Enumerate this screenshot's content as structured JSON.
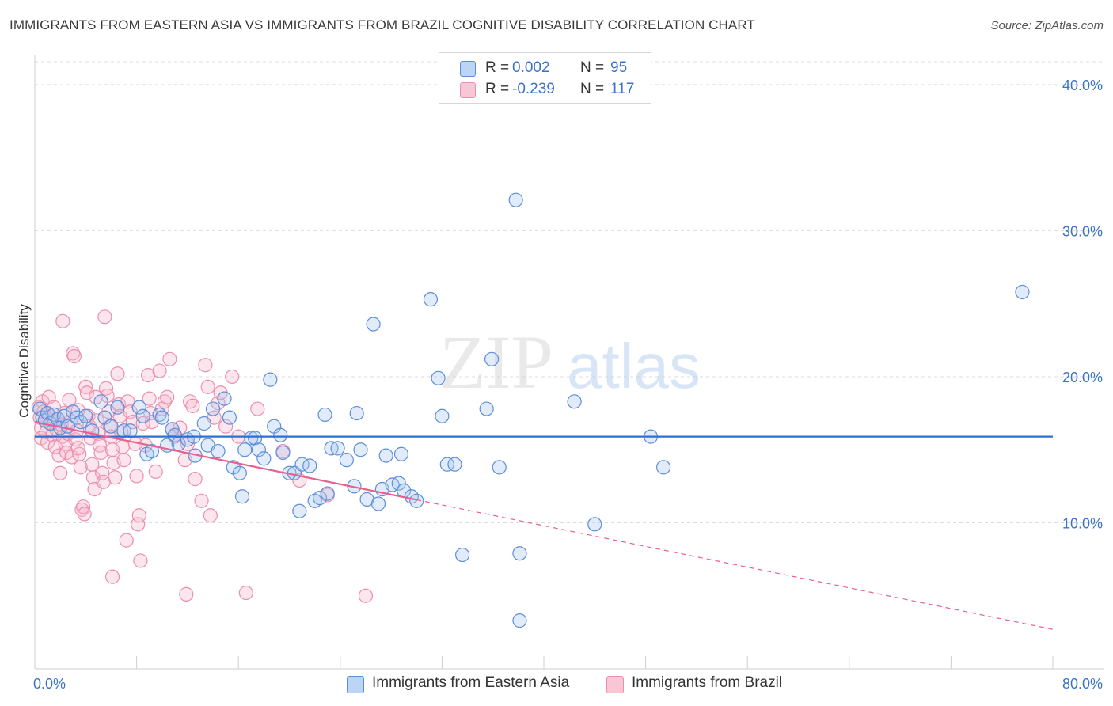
{
  "title": "IMMIGRANTS FROM EASTERN ASIA VS IMMIGRANTS FROM BRAZIL COGNITIVE DISABILITY CORRELATION CHART",
  "source": "Source: ZipAtlas.com",
  "watermark": {
    "zip": "ZIP",
    "atlas": "atlas"
  },
  "legend": {
    "rows": [
      {
        "r_label": "R =",
        "r_value": "0.002",
        "n_label": "N =",
        "n_value": "95"
      },
      {
        "r_label": "R =",
        "r_value": "-0.239",
        "n_label": "N =",
        "n_value": "117"
      }
    ]
  },
  "colors": {
    "blue_fill": "#a9c7f0",
    "blue_stroke": "#5b8fd9",
    "blue_line": "#2f6fce",
    "pink_fill": "#f7b8cc",
    "pink_stroke": "#ec8fae",
    "pink_line": "#e8608f",
    "tick_text": "#3a73c8",
    "grid": "#dddddd"
  },
  "chart_data": {
    "type": "scatter",
    "title": "IMMIGRANTS FROM EASTERN ASIA VS IMMIGRANTS FROM BRAZIL COGNITIVE DISABILITY CORRELATION CHART",
    "xlabel": "",
    "ylabel": "Cognitive Disability",
    "xlim": [
      0,
      80
    ],
    "ylim": [
      0,
      42
    ],
    "x_tick_labels": [
      "0.0%",
      "80.0%"
    ],
    "y_ticks": [
      10,
      20,
      30,
      40
    ],
    "y_tick_labels": [
      "10.0%",
      "20.0%",
      "30.0%",
      "40.0%"
    ],
    "grid": true,
    "legend_position": "top-center",
    "series": [
      {
        "name": "Immigrants from Eastern Asia",
        "color": "#5b8fd9",
        "trend": {
          "x": [
            0,
            80
          ],
          "y": [
            15.9,
            15.9
          ],
          "dashed_from": null
        },
        "points": [
          [
            0.4,
            17.8
          ],
          [
            0.6,
            17.2
          ],
          [
            0.8,
            17.0
          ],
          [
            1.0,
            17.5
          ],
          [
            1.2,
            16.8
          ],
          [
            1.5,
            17.4
          ],
          [
            1.8,
            17.1
          ],
          [
            2.0,
            16.5
          ],
          [
            2.3,
            17.3
          ],
          [
            2.6,
            16.6
          ],
          [
            3.0,
            17.6
          ],
          [
            3.3,
            17.2
          ],
          [
            3.6,
            16.9
          ],
          [
            4.0,
            17.3
          ],
          [
            4.5,
            16.3
          ],
          [
            5.2,
            18.3
          ],
          [
            5.5,
            17.2
          ],
          [
            6.0,
            16.6
          ],
          [
            6.5,
            17.9
          ],
          [
            7.0,
            16.3
          ],
          [
            7.5,
            16.3
          ],
          [
            8.2,
            17.9
          ],
          [
            8.5,
            17.3
          ],
          [
            8.8,
            14.7
          ],
          [
            9.2,
            14.9
          ],
          [
            9.8,
            17.4
          ],
          [
            10.0,
            17.2
          ],
          [
            10.4,
            15.3
          ],
          [
            10.8,
            16.4
          ],
          [
            11.0,
            16.0
          ],
          [
            11.3,
            15.4
          ],
          [
            12.0,
            15.7
          ],
          [
            12.5,
            15.9
          ],
          [
            12.6,
            14.6
          ],
          [
            13.3,
            16.8
          ],
          [
            13.6,
            15.3
          ],
          [
            14.0,
            17.8
          ],
          [
            14.4,
            14.9
          ],
          [
            14.9,
            18.5
          ],
          [
            15.3,
            17.2
          ],
          [
            15.6,
            13.8
          ],
          [
            16.1,
            13.4
          ],
          [
            16.3,
            11.8
          ],
          [
            16.5,
            15.0
          ],
          [
            17.0,
            15.8
          ],
          [
            17.3,
            15.8
          ],
          [
            17.6,
            15.0
          ],
          [
            18.0,
            14.4
          ],
          [
            18.5,
            19.8
          ],
          [
            18.8,
            16.6
          ],
          [
            19.3,
            16.0
          ],
          [
            19.5,
            14.8
          ],
          [
            20.0,
            13.4
          ],
          [
            20.4,
            13.4
          ],
          [
            20.8,
            10.8
          ],
          [
            21.0,
            14.0
          ],
          [
            21.6,
            13.9
          ],
          [
            22.0,
            11.5
          ],
          [
            22.4,
            11.7
          ],
          [
            22.8,
            17.4
          ],
          [
            23.0,
            12.0
          ],
          [
            23.3,
            15.1
          ],
          [
            23.8,
            15.1
          ],
          [
            24.5,
            14.3
          ],
          [
            25.1,
            12.5
          ],
          [
            25.3,
            17.5
          ],
          [
            25.6,
            15.0
          ],
          [
            26.1,
            11.6
          ],
          [
            26.6,
            23.6
          ],
          [
            27.0,
            11.3
          ],
          [
            27.3,
            12.3
          ],
          [
            27.6,
            14.6
          ],
          [
            28.1,
            12.6
          ],
          [
            28.6,
            12.7
          ],
          [
            28.8,
            14.7
          ],
          [
            29.0,
            12.2
          ],
          [
            29.6,
            11.8
          ],
          [
            30.0,
            11.5
          ],
          [
            31.1,
            25.3
          ],
          [
            31.7,
            19.9
          ],
          [
            32.0,
            17.3
          ],
          [
            32.4,
            14.0
          ],
          [
            33.0,
            14.0
          ],
          [
            33.6,
            7.8
          ],
          [
            35.5,
            17.8
          ],
          [
            35.9,
            21.2
          ],
          [
            36.5,
            13.8
          ],
          [
            37.8,
            32.1
          ],
          [
            38.1,
            7.9
          ],
          [
            38.1,
            3.3
          ],
          [
            42.4,
            18.3
          ],
          [
            44.0,
            9.9
          ],
          [
            48.4,
            15.9
          ],
          [
            49.4,
            13.8
          ],
          [
            77.6,
            25.8
          ]
        ]
      },
      {
        "name": "Immigrants from Brazil",
        "color": "#ec8fae",
        "trend": {
          "x": [
            0,
            80
          ],
          "y": [
            16.9,
            2.7
          ],
          "dashed_from": 30.0
        },
        "points": [
          [
            0.3,
            17.9
          ],
          [
            0.4,
            17.2
          ],
          [
            0.5,
            16.5
          ],
          [
            0.5,
            15.8
          ],
          [
            0.6,
            18.3
          ],
          [
            0.7,
            17.6
          ],
          [
            0.8,
            17.0
          ],
          [
            0.9,
            16.2
          ],
          [
            1.0,
            15.5
          ],
          [
            1.1,
            18.6
          ],
          [
            1.2,
            17.3
          ],
          [
            1.3,
            16.8
          ],
          [
            1.4,
            16.0
          ],
          [
            1.5,
            17.9
          ],
          [
            1.6,
            15.2
          ],
          [
            1.7,
            16.4
          ],
          [
            1.8,
            17.1
          ],
          [
            1.9,
            14.6
          ],
          [
            2.0,
            13.4
          ],
          [
            2.1,
            16.7
          ],
          [
            2.2,
            15.9
          ],
          [
            2.3,
            17.5
          ],
          [
            2.4,
            15.4
          ],
          [
            2.5,
            14.8
          ],
          [
            2.6,
            16.1
          ],
          [
            2.7,
            18.4
          ],
          [
            2.8,
            16.9
          ],
          [
            2.9,
            14.5
          ],
          [
            3.0,
            21.6
          ],
          [
            3.1,
            21.4
          ],
          [
            3.2,
            15.7
          ],
          [
            3.3,
            16.3
          ],
          [
            3.4,
            17.7
          ],
          [
            3.5,
            14.7
          ],
          [
            3.6,
            13.8
          ],
          [
            3.7,
            10.9
          ],
          [
            3.8,
            11.1
          ],
          [
            3.9,
            10.6
          ],
          [
            4.0,
            19.3
          ],
          [
            4.1,
            18.9
          ],
          [
            4.2,
            17.3
          ],
          [
            4.3,
            16.6
          ],
          [
            4.4,
            15.8
          ],
          [
            4.5,
            14.0
          ],
          [
            4.6,
            13.1
          ],
          [
            4.7,
            12.3
          ],
          [
            4.8,
            18.6
          ],
          [
            4.9,
            17.0
          ],
          [
            5.0,
            16.1
          ],
          [
            5.1,
            15.3
          ],
          [
            5.2,
            14.8
          ],
          [
            5.3,
            13.4
          ],
          [
            5.4,
            12.8
          ],
          [
            5.5,
            24.1
          ],
          [
            5.6,
            19.2
          ],
          [
            5.7,
            18.7
          ],
          [
            5.8,
            17.6
          ],
          [
            5.9,
            16.6
          ],
          [
            6.0,
            15.9
          ],
          [
            6.1,
            15.0
          ],
          [
            6.2,
            14.1
          ],
          [
            6.3,
            13.1
          ],
          [
            6.5,
            20.2
          ],
          [
            6.6,
            18.1
          ],
          [
            6.7,
            17.3
          ],
          [
            6.8,
            16.2
          ],
          [
            6.9,
            15.2
          ],
          [
            7.0,
            14.3
          ],
          [
            7.2,
            8.8
          ],
          [
            7.3,
            18.3
          ],
          [
            7.5,
            17.6
          ],
          [
            7.7,
            16.9
          ],
          [
            7.9,
            15.4
          ],
          [
            8.0,
            13.2
          ],
          [
            8.1,
            9.9
          ],
          [
            8.2,
            10.5
          ],
          [
            8.3,
            7.4
          ],
          [
            8.5,
            16.8
          ],
          [
            8.7,
            15.3
          ],
          [
            8.9,
            20.1
          ],
          [
            9.0,
            18.5
          ],
          [
            9.1,
            17.5
          ],
          [
            9.2,
            16.9
          ],
          [
            9.5,
            13.5
          ],
          [
            9.8,
            20.4
          ],
          [
            10.0,
            17.8
          ],
          [
            10.2,
            18.3
          ],
          [
            10.4,
            18.6
          ],
          [
            10.6,
            21.2
          ],
          [
            10.8,
            16.4
          ],
          [
            11.0,
            15.9
          ],
          [
            11.4,
            16.5
          ],
          [
            11.8,
            14.3
          ],
          [
            12.0,
            15.4
          ],
          [
            12.2,
            18.3
          ],
          [
            12.4,
            18.0
          ],
          [
            12.6,
            13.0
          ],
          [
            13.1,
            11.5
          ],
          [
            13.4,
            20.8
          ],
          [
            13.6,
            19.3
          ],
          [
            13.8,
            10.5
          ],
          [
            14.1,
            17.2
          ],
          [
            14.4,
            18.2
          ],
          [
            14.6,
            18.9
          ],
          [
            15.0,
            16.6
          ],
          [
            15.5,
            20.0
          ],
          [
            16.0,
            15.9
          ],
          [
            16.6,
            5.2
          ],
          [
            17.5,
            17.8
          ],
          [
            19.5,
            14.9
          ],
          [
            20.8,
            12.9
          ],
          [
            26.0,
            5.0
          ],
          [
            23.0,
            11.9
          ],
          [
            2.2,
            23.8
          ],
          [
            6.1,
            6.3
          ],
          [
            11.9,
            5.1
          ],
          [
            3.4,
            15.1
          ]
        ]
      }
    ]
  },
  "bottom_legend": [
    "Immigrants from Eastern Asia",
    "Immigrants from Brazil"
  ]
}
